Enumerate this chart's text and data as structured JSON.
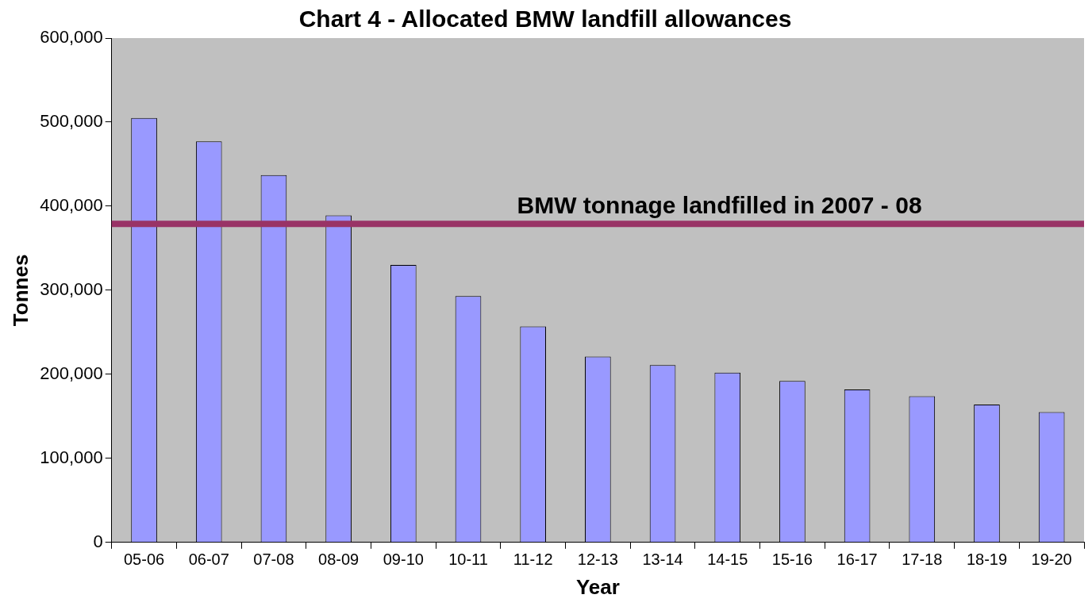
{
  "chart_data": {
    "type": "bar",
    "title": "Chart 4 - Allocated BMW landfill allowances",
    "xlabel": "Year",
    "ylabel": "Tonnes",
    "categories": [
      "05-06",
      "06-07",
      "07-08",
      "08-09",
      "09-10",
      "10-11",
      "11-12",
      "12-13",
      "13-14",
      "14-15",
      "15-16",
      "16-17",
      "17-18",
      "18-19",
      "19-20"
    ],
    "values": [
      505000,
      477000,
      437000,
      389000,
      330000,
      293000,
      257000,
      221000,
      211000,
      202000,
      192000,
      182000,
      174000,
      164000,
      155000
    ],
    "color": "#9999ff",
    "ylim": [
      0,
      600000
    ],
    "yticks": [
      {
        "value": 0,
        "label": "0"
      },
      {
        "value": 100000,
        "label": "100,000"
      },
      {
        "value": 200000,
        "label": "200,000"
      },
      {
        "value": 300000,
        "label": "300,000"
      },
      {
        "value": 400000,
        "label": "400,000"
      },
      {
        "value": 500000,
        "label": "500,000"
      },
      {
        "value": 600000,
        "label": "600,000"
      }
    ],
    "ref_lines": [
      {
        "axis": "y",
        "value": 379000,
        "label": "BMW tonnage landfilled in 2007 - 08",
        "color": "#993366"
      }
    ],
    "grid": false,
    "legend": false
  }
}
